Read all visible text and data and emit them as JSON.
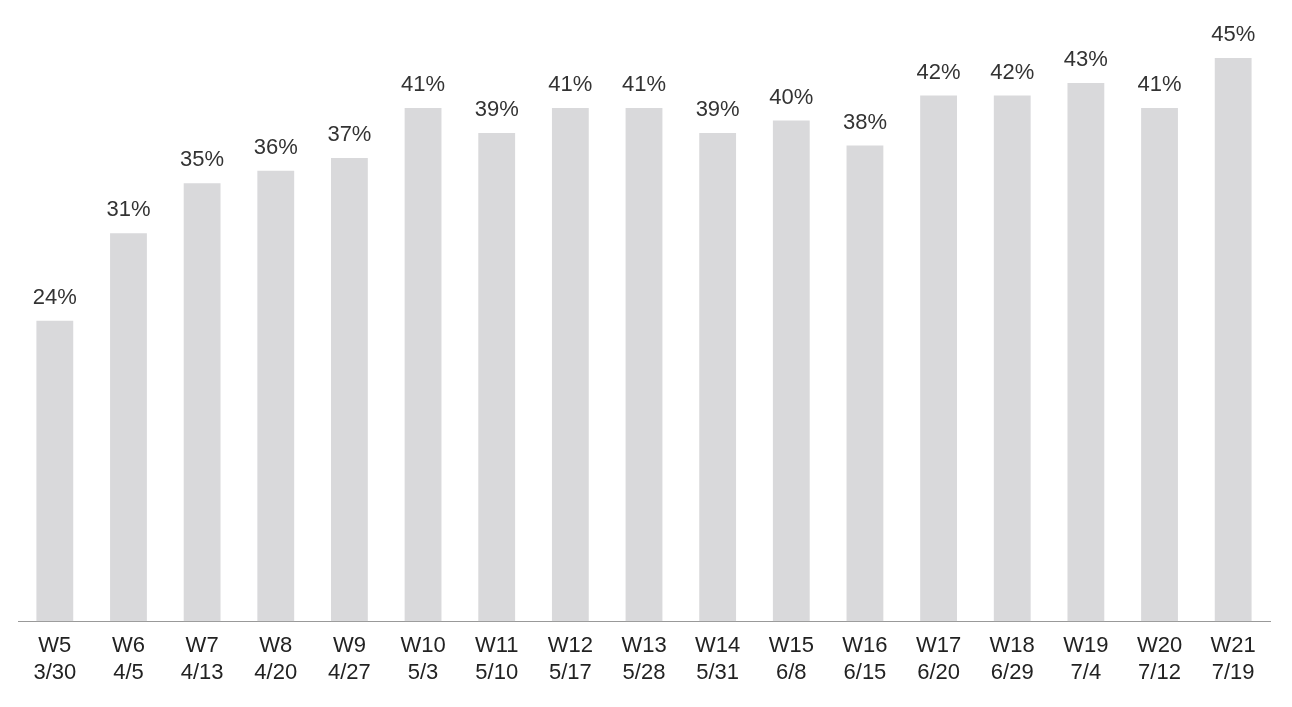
{
  "chart_data": {
    "type": "bar",
    "categories": [
      "W5\n3/30",
      "W6\n4/5",
      "W7\n4/13",
      "W8\n4/20",
      "W9\n4/27",
      "W10\n5/3",
      "W11\n5/10",
      "W12\n5/17",
      "W13\n5/28",
      "W14\n5/31",
      "W15\n6/8",
      "W16\n6/15",
      "W17\n6/20",
      "W18\n6/29",
      "W19\n7/4",
      "W20\n7/12",
      "W21\n7/19"
    ],
    "values": [
      24,
      31,
      35,
      36,
      37,
      41,
      39,
      41,
      41,
      39,
      40,
      38,
      42,
      42,
      43,
      41,
      45
    ],
    "value_labels": [
      "24%",
      "31%",
      "35%",
      "36%",
      "37%",
      "41%",
      "39%",
      "41%",
      "41%",
      "39%",
      "40%",
      "38%",
      "42%",
      "42%",
      "43%",
      "41%",
      "45%"
    ],
    "color": "#d9d9db",
    "grid": false,
    "legend": false
  }
}
